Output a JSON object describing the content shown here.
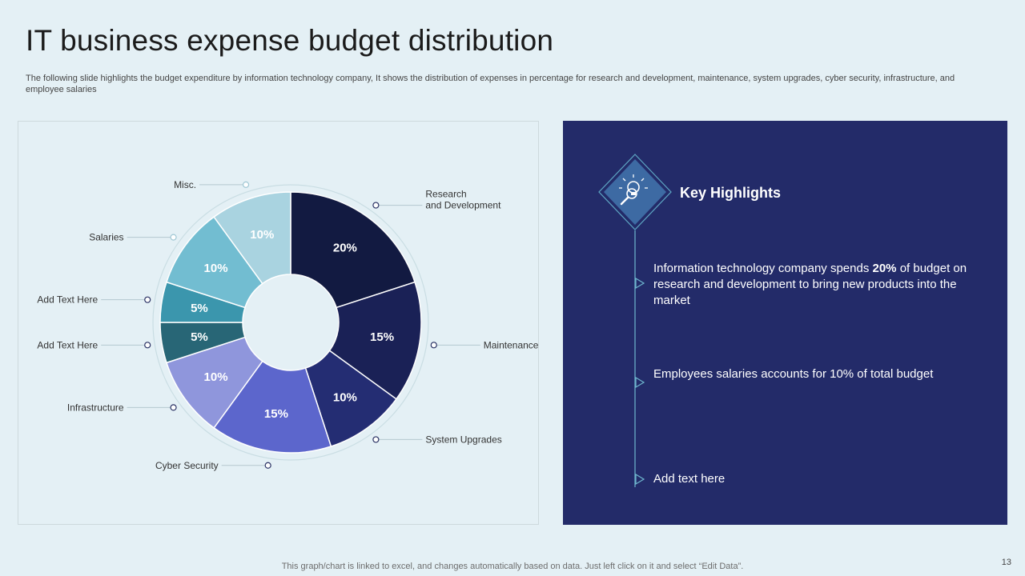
{
  "title": "IT business expense budget distribution",
  "subtitle": "The following slide highlights the budget expenditure by information technology company, It shows the distribution of expenses in percentage for research and development, maintenance, system upgrades, cyber security, infrastructure, and employee salaries",
  "chart_data": {
    "type": "pie",
    "variant": "donut",
    "title": "",
    "slices": [
      {
        "label": "Research and Development",
        "label_lines": [
          "Research",
          "and Development"
        ],
        "value": 20,
        "value_label": "20%",
        "color": "#121a41"
      },
      {
        "label": "Maintenance",
        "label_lines": [
          "Maintenance"
        ],
        "value": 15,
        "value_label": "15%",
        "color": "#1a2156"
      },
      {
        "label": "System Upgrades",
        "label_lines": [
          "System Upgrades"
        ],
        "value": 10,
        "value_label": "10%",
        "color": "#242d73"
      },
      {
        "label": "Cyber Security",
        "label_lines": [
          "Cyber Security"
        ],
        "value": 15,
        "value_label": "15%",
        "color": "#5c66cc"
      },
      {
        "label": "Infrastructure",
        "label_lines": [
          "Infrastructure"
        ],
        "value": 10,
        "value_label": "10%",
        "color": "#8f96dc"
      },
      {
        "label": "Add Text Here",
        "label_lines": [
          "Add Text Here"
        ],
        "value": 5,
        "value_label": "5%",
        "color": "#286676"
      },
      {
        "label": "Add Text Here",
        "label_lines": [
          "Add Text Here"
        ],
        "value": 5,
        "value_label": "5%",
        "color": "#3b96ad"
      },
      {
        "label": "Salaries",
        "label_lines": [
          "Salaries"
        ],
        "value": 10,
        "value_label": "10%",
        "color": "#72bdd1"
      },
      {
        "label": "Misc.",
        "label_lines": [
          "Misc."
        ],
        "value": 10,
        "value_label": "10%",
        "color": "#a9d3e0"
      }
    ]
  },
  "highlights": {
    "title": "Key Highlights",
    "icon": "lightbulb-magnifier-icon",
    "items": [
      {
        "pre": "Information technology company spends ",
        "bold": "20%",
        "post": " of budget on research and development to bring new products into the market"
      },
      {
        "pre": "Employees salaries accounts for 10% of total budget",
        "bold": "",
        "post": ""
      },
      {
        "pre": "Add text here",
        "bold": "",
        "post": ""
      }
    ]
  },
  "footer_note": "This graph/chart is linked to excel, and changes automatically based on data. Just left click on it and select “Edit Data”.",
  "page_number": "13"
}
